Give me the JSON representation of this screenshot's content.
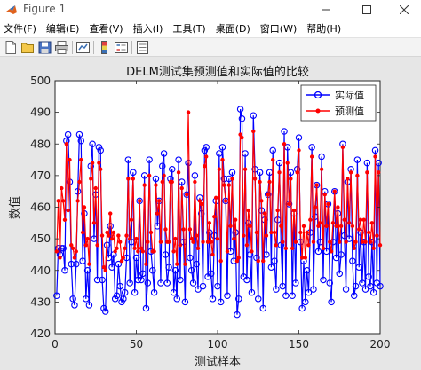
{
  "window": {
    "title": "Figure 1"
  },
  "menu": [
    "文件(F)",
    "编辑(E)",
    "查看(V)",
    "插入(I)",
    "工具(T)",
    "桌面(D)",
    "窗口(W)",
    "帮助(H)"
  ],
  "colors": {
    "actual": "#0000ff",
    "predicted": "#ff0000",
    "figure_bg": "#e6e6e6"
  },
  "chart_data": {
    "type": "line",
    "title": "DELM测试集预测值和实际值的比较",
    "xlabel": "测试样本",
    "ylabel": "数值",
    "xlim": [
      0,
      200
    ],
    "ylim": [
      420,
      500
    ],
    "xticks": [
      0,
      50,
      100,
      150,
      200
    ],
    "yticks": [
      420,
      430,
      440,
      450,
      460,
      470,
      480,
      490,
      500
    ],
    "grid": false,
    "legend_position": "top-right",
    "series": [
      {
        "name": "实际值",
        "color": "#0000ff",
        "marker": "circle",
        "values": [
          432,
          447,
          445,
          447,
          447,
          440,
          481,
          483,
          468,
          442,
          431,
          429,
          442,
          465,
          483,
          481,
          443,
          458,
          431,
          440,
          429,
          473,
          480,
          450,
          464,
          437,
          479,
          478,
          437,
          428,
          427,
          448,
          444,
          454,
          441,
          445,
          431,
          432,
          442,
          435,
          430,
          431,
          433,
          444,
          475,
          436,
          449,
          471,
          433,
          444,
          437,
          462,
          437,
          439,
          470,
          428,
          436,
          475,
          446,
          440,
          433,
          469,
          454,
          462,
          436,
          473,
          477,
          445,
          436,
          441,
          469,
          472,
          433,
          440,
          431,
          475,
          437,
          468,
          449,
          430,
          464,
          474,
          444,
          440,
          436,
          470,
          442,
          434,
          463,
          458,
          435,
          478,
          479,
          438,
          452,
          439,
          431,
          451,
          462,
          435,
          477,
          430,
          479,
          469,
          462,
          432,
          469,
          446,
          471,
          443,
          452,
          426,
          431,
          491,
          488,
          438,
          477,
          437,
          455,
          445,
          433,
          489,
          472,
          444,
          431,
          471,
          459,
          428,
          456,
          445,
          464,
          471,
          441,
          478,
          443,
          434,
          456,
          474,
          448,
          435,
          484,
          432,
          479,
          461,
          471,
          432,
          458,
          436,
          472,
          482,
          449,
          428,
          443,
          430,
          440,
          433,
          452,
          479,
          434,
          457,
          467,
          446,
          449,
          476,
          437,
          465,
          446,
          461,
          436,
          430,
          449,
          465,
          444,
          458,
          439,
          445,
          480,
          451,
          434,
          468,
          450,
          472,
          443,
          432,
          435,
          475,
          441,
          452,
          436,
          449,
          434,
          474,
          438,
          435,
          449,
          433,
          478,
          436,
          474,
          435
        ]
      },
      {
        "name": "预测值",
        "color": "#ff0000",
        "marker": "point",
        "values": [
          446,
          462,
          444,
          466,
          462,
          456,
          480,
          459,
          475,
          448,
          447,
          444,
          446,
          462,
          468,
          475,
          452,
          460,
          448,
          450,
          442,
          469,
          474,
          455,
          466,
          448,
          474,
          472,
          451,
          441,
          440,
          452,
          451,
          458,
          450,
          452,
          446,
          447,
          451,
          449,
          443,
          444,
          447,
          451,
          469,
          450,
          456,
          469,
          447,
          450,
          446,
          462,
          447,
          446,
          467,
          442,
          449,
          470,
          452,
          446,
          446,
          467,
          458,
          462,
          449,
          468,
          470,
          453,
          449,
          449,
          468,
          468,
          446,
          450,
          442,
          471,
          448,
          466,
          453,
          442,
          464,
          490,
          453,
          450,
          449,
          468,
          451,
          447,
          462,
          461,
          449,
          473,
          476,
          449,
          455,
          449,
          445,
          457,
          463,
          450,
          472,
          443,
          475,
          467,
          462,
          446,
          467,
          454,
          469,
          450,
          456,
          443,
          444,
          483,
          482,
          451,
          472,
          448,
          459,
          454,
          446,
          484,
          469,
          452,
          443,
          468,
          462,
          443,
          458,
          451,
          464,
          468,
          452,
          475,
          452,
          448,
          459,
          471,
          454,
          449,
          480,
          447,
          474,
          461,
          469,
          447,
          459,
          449,
          471,
          478,
          452,
          444,
          454,
          444,
          452,
          448,
          456,
          476,
          449,
          460,
          467,
          454,
          455,
          472,
          447,
          464,
          454,
          461,
          449,
          446,
          455,
          465,
          454,
          460,
          449,
          454,
          479,
          456,
          449,
          469,
          455,
          471,
          454,
          447,
          449,
          470,
          453,
          456,
          449,
          456,
          449,
          471,
          452,
          449,
          455,
          447,
          476,
          451,
          471,
          448
        ]
      }
    ]
  }
}
